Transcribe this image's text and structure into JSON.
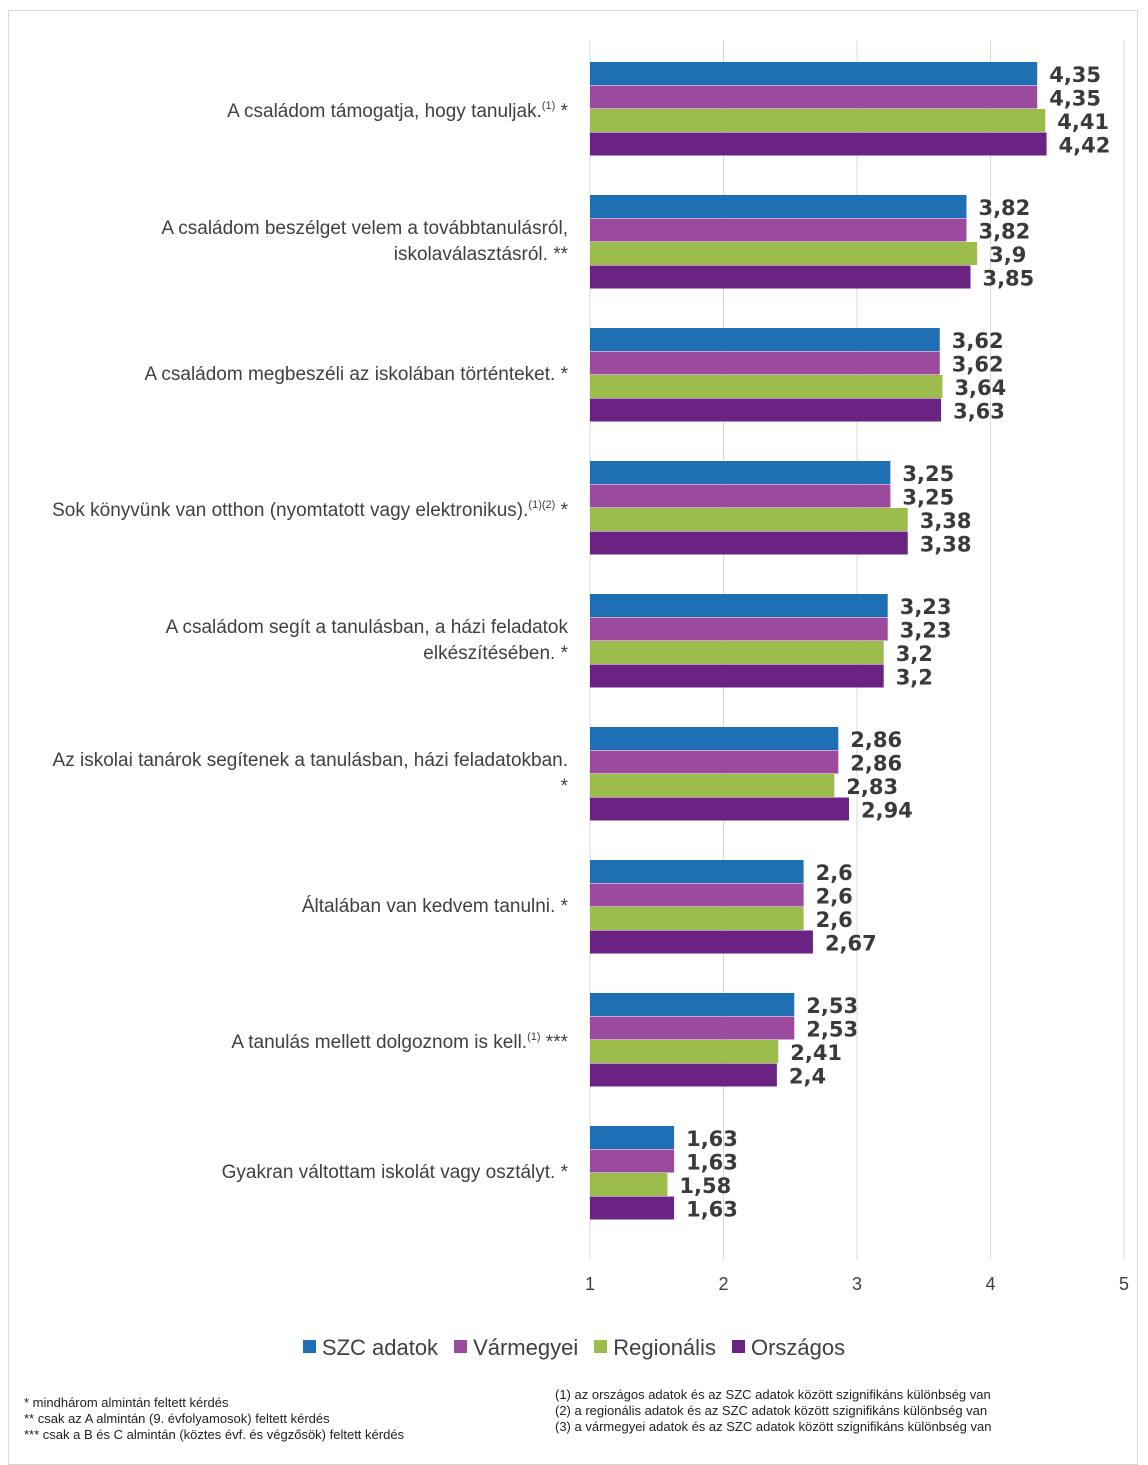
{
  "chart_data": {
    "type": "bar",
    "orientation": "horizontal",
    "categories": [
      {
        "text": "A családom támogatja, hogy tanuljak.",
        "sup": "(1)",
        "suffix": "*"
      },
      {
        "text": "A családom beszélget velem a továbbtanulásról, iskolaválasztásról.",
        "sup": "",
        "suffix": "**"
      },
      {
        "text": "A családom megbeszéli az iskolában történteket.",
        "sup": "",
        "suffix": "*"
      },
      {
        "text": "Sok könyvünk van otthon (nyomtatott vagy elektronikus).",
        "sup": "(1)(2)",
        "suffix": "*"
      },
      {
        "text": "A családom segít a tanulásban, a házi feladatok elkészítésében.",
        "sup": "",
        "suffix": "*"
      },
      {
        "text": "Az iskolai tanárok segítenek a tanulásban, házi feladatokban.",
        "sup": "",
        "suffix": "*"
      },
      {
        "text": "Általában van kedvem tanulni.",
        "sup": "",
        "suffix": "*"
      },
      {
        "text": "A tanulás mellett dolgoznom is kell.",
        "sup": "(1)",
        "suffix": "***"
      },
      {
        "text": "Gyakran váltottam iskolát vagy osztályt.",
        "sup": "",
        "suffix": "*"
      }
    ],
    "series": [
      {
        "name": "SZC adatok",
        "color": "#1f6fb5",
        "values": [
          4.35,
          3.82,
          3.62,
          3.25,
          3.23,
          2.86,
          2.6,
          2.53,
          1.63
        ],
        "labels": [
          "4,35",
          "3,82",
          "3,62",
          "3,25",
          "3,23",
          "2,86",
          "2,6",
          "2,53",
          "1,63"
        ]
      },
      {
        "name": "Vármegyei",
        "color": "#9b4a9e",
        "values": [
          4.35,
          3.82,
          3.62,
          3.25,
          3.23,
          2.86,
          2.6,
          2.53,
          1.63
        ],
        "labels": [
          "4,35",
          "3,82",
          "3,62",
          "3,25",
          "3,23",
          "2,86",
          "2,6",
          "2,53",
          "1,63"
        ]
      },
      {
        "name": "Regionális",
        "color": "#9cbc4c",
        "values": [
          4.41,
          3.9,
          3.64,
          3.38,
          3.2,
          2.83,
          2.6,
          2.41,
          1.58
        ],
        "labels": [
          "4,41",
          "3,9",
          "3,64",
          "3,38",
          "3,2",
          "2,83",
          "2,6",
          "2,41",
          "1,58"
        ]
      },
      {
        "name": "Országos",
        "color": "#6a2383",
        "values": [
          4.42,
          3.85,
          3.63,
          3.38,
          3.2,
          2.94,
          2.67,
          2.4,
          1.63
        ],
        "labels": [
          "4,42",
          "3,85",
          "3,63",
          "3,38",
          "3,2",
          "2,94",
          "2,67",
          "2,4",
          "1,63"
        ]
      }
    ],
    "xlim": [
      1,
      5
    ],
    "xticks": [
      "1",
      "2",
      "3",
      "4",
      "5"
    ],
    "grid": "vertical",
    "legend": "bottom"
  },
  "notes_left": [
    "* mindhárom almintán feltett kérdés",
    "** csak az A almintán (9. évfolyamosok) feltett kérdés",
    "*** csak a B és C almintán (köztes évf. és végzősök) feltett kérdés"
  ],
  "notes_right": [
    "(1) az országos adatok és az SZC adatok között szignifikáns különbség van",
    "(2) a regionális adatok és az SZC adatok között szignifikáns különbség van",
    "(3) a vármegyei adatok és az SZC adatok között szignifikáns különbség van"
  ]
}
